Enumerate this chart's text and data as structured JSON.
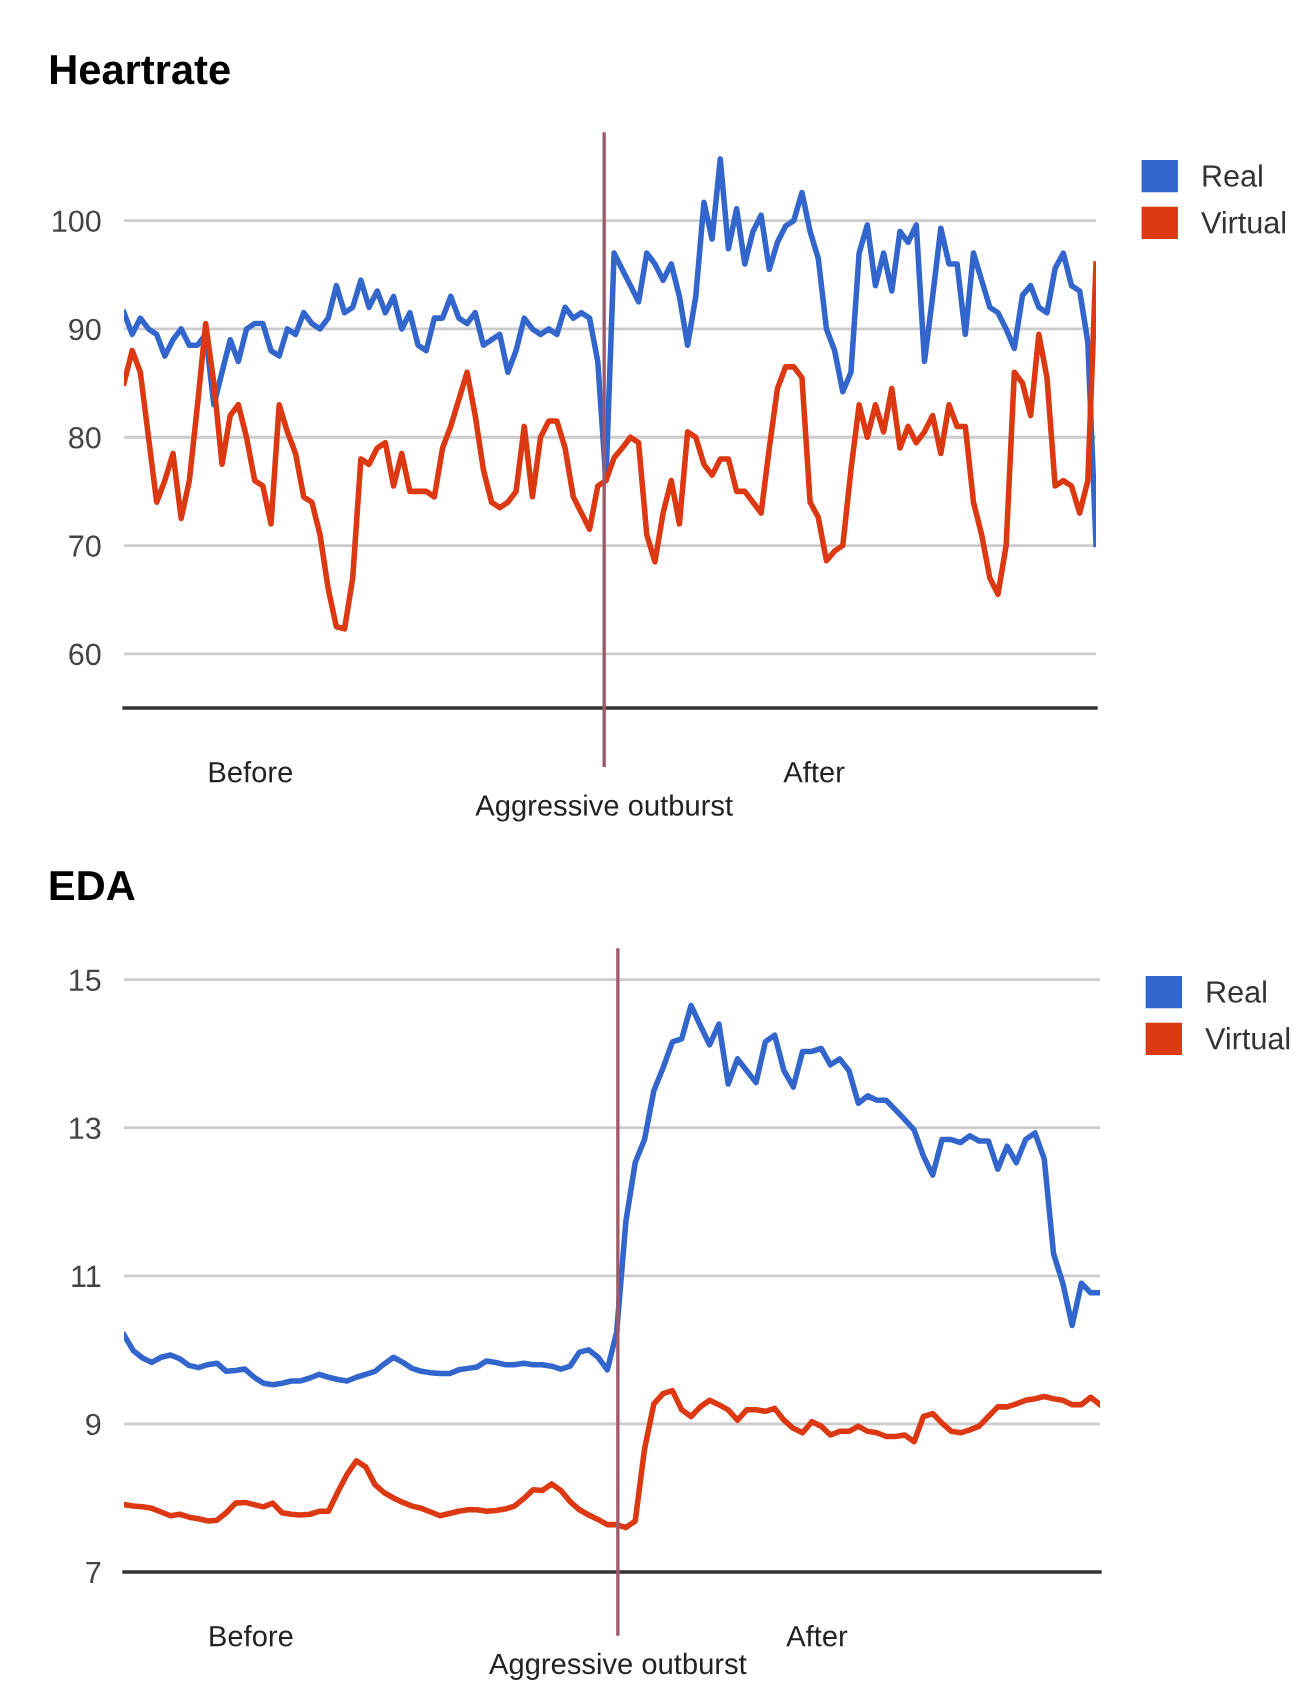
{
  "chart_data": [
    {
      "type": "line",
      "title": "Heartrate",
      "categories": [
        null,
        null,
        null,
        null,
        null,
        null,
        null,
        null,
        null,
        null,
        null,
        null,
        null,
        null,
        null,
        null,
        null,
        null,
        null,
        null,
        null,
        null,
        null,
        null,
        null,
        null,
        null,
        null,
        null,
        null,
        null,
        null,
        null,
        null,
        null,
        null,
        null,
        null,
        null,
        null,
        null,
        null,
        null,
        null,
        null,
        null,
        null,
        null,
        null,
        null,
        null,
        null,
        null,
        null,
        null,
        null,
        null,
        null,
        null,
        null,
        null,
        null,
        null,
        null,
        null,
        null,
        null,
        null,
        null,
        null,
        null,
        null,
        null,
        null,
        null,
        null,
        null,
        null,
        null,
        null,
        null,
        null,
        null,
        null,
        null,
        null,
        null,
        null,
        null,
        null,
        null,
        null,
        null,
        null,
        null,
        null,
        null,
        null,
        null,
        null,
        null,
        null,
        null,
        null,
        null,
        null,
        null,
        null,
        null,
        null,
        null,
        null,
        null,
        null,
        null,
        null,
        null,
        null,
        null,
        null
      ],
      "series": [
        {
          "name": "Real",
          "color": "#3366cc",
          "values": [
            91.5,
            89.5,
            91,
            90,
            89.5,
            87.5,
            89,
            90,
            88.5,
            88.5,
            89.5,
            83,
            86,
            89,
            87,
            90,
            90.5,
            90.5,
            88,
            87.5,
            90,
            89.5,
            91.5,
            90.5,
            90,
            91,
            94,
            91.5,
            92,
            94.5,
            92,
            93.5,
            91.5,
            93,
            90,
            91.5,
            88.5,
            88,
            91,
            91,
            93,
            91,
            90.5,
            91.5,
            88.5,
            89,
            89.5,
            86,
            88,
            91,
            90,
            89.5,
            90,
            89.5,
            92,
            91,
            91.5,
            91,
            87,
            76,
            97,
            95.5,
            94,
            92.5,
            97,
            96,
            94.5,
            96,
            93,
            88.5,
            93,
            101.7,
            98.3,
            105.7,
            97.4,
            101.1,
            96,
            99,
            100.5,
            95.5,
            98,
            99.5,
            100,
            102.6,
            99,
            96.5,
            90,
            88,
            84.2,
            86,
            97,
            99.6,
            94,
            97,
            93.5,
            99,
            98,
            99.6,
            87,
            93,
            99.3,
            96,
            96,
            89.5,
            97,
            94.5,
            92,
            91.5,
            90,
            88.2,
            93.1,
            94,
            92,
            91.5,
            95.6,
            97,
            94,
            93.5,
            88.8,
            70.1
          ]
        },
        {
          "name": "Virtual",
          "color": "#dc3912",
          "values": [
            85,
            88,
            86,
            80,
            74,
            76,
            78.5,
            72.5,
            76,
            83,
            90.5,
            85,
            77.5,
            82,
            83,
            80,
            76,
            75.5,
            72,
            83,
            80.5,
            78.5,
            74.5,
            74,
            71,
            66,
            62.5,
            62.3,
            67,
            78,
            77.5,
            79,
            79.5,
            75.5,
            78.5,
            75,
            75,
            75,
            74.5,
            79,
            81,
            83.5,
            86,
            82,
            77,
            74,
            73.5,
            74,
            75,
            81,
            74.5,
            80,
            81.5,
            81.5,
            79,
            74.5,
            73,
            71.5,
            75.5,
            76,
            78.1,
            79,
            80,
            79.5,
            71,
            68.5,
            73,
            76,
            72,
            80.5,
            80,
            77.5,
            76.5,
            78,
            78,
            75,
            75,
            74,
            73,
            79,
            84.5,
            86.5,
            86.5,
            85.5,
            74,
            72.6,
            68.6,
            69.5,
            70,
            77,
            83,
            80,
            83,
            80.5,
            84.5,
            79,
            81,
            79.5,
            80.5,
            82,
            78.5,
            83,
            81,
            81,
            74,
            71,
            67,
            65.5,
            70,
            86,
            85,
            82,
            89.5,
            85.5,
            75.5,
            76,
            75.5,
            73,
            76,
            96
          ]
        }
      ],
      "ylim": [
        55,
        108
      ],
      "yticks": [
        60,
        70,
        80,
        90,
        100
      ],
      "annotations": [
        "Before",
        "Aggressive outburst",
        "After"
      ],
      "grid": "y",
      "legend": "top right",
      "tick_labels": "y"
    },
    {
      "type": "line",
      "title": "EDA",
      "categories": [
        null,
        null,
        null,
        null,
        null,
        null,
        null,
        null,
        null,
        null,
        null,
        null,
        null,
        null,
        null,
        null,
        null,
        null,
        null,
        null,
        null,
        null,
        null,
        null,
        null,
        null,
        null,
        null,
        null,
        null,
        null,
        null,
        null,
        null,
        null,
        null,
        null,
        null,
        null,
        null,
        null,
        null,
        null,
        null,
        null,
        null,
        null,
        null,
        null,
        null,
        null,
        null,
        null,
        null,
        null,
        null,
        null,
        null,
        null,
        null,
        null,
        null,
        null,
        null,
        null,
        null,
        null,
        null,
        null,
        null,
        null,
        null,
        null,
        null,
        null,
        null,
        null,
        null,
        null,
        null,
        null,
        null,
        null,
        null,
        null,
        null,
        null,
        null,
        null,
        null,
        null,
        null,
        null,
        null,
        null,
        null,
        null,
        null,
        null,
        null,
        null,
        null,
        null,
        null,
        null,
        null
      ],
      "series": [
        {
          "name": "Real",
          "color": "#3366cc",
          "values": [
            10.2,
            9.99,
            9.89,
            9.83,
            9.9,
            9.93,
            9.88,
            9.79,
            9.76,
            9.8,
            9.82,
            9.71,
            9.72,
            9.74,
            9.63,
            9.55,
            9.53,
            9.55,
            9.58,
            9.58,
            9.62,
            9.67,
            9.63,
            9.6,
            9.58,
            9.63,
            9.67,
            9.71,
            9.81,
            9.9,
            9.83,
            9.75,
            9.71,
            9.69,
            9.68,
            9.68,
            9.73,
            9.75,
            9.77,
            9.85,
            9.83,
            9.8,
            9.8,
            9.82,
            9.8,
            9.8,
            9.78,
            9.74,
            9.78,
            9.97,
            10.0,
            9.9,
            9.73,
            10.24,
            11.74,
            12.53,
            12.84,
            13.5,
            13.81,
            14.16,
            14.2,
            14.65,
            14.38,
            14.12,
            14.4,
            13.59,
            13.93,
            13.77,
            13.61,
            14.16,
            14.25,
            13.77,
            13.55,
            14.03,
            14.03,
            14.07,
            13.85,
            13.93,
            13.77,
            13.33,
            13.43,
            13.37,
            13.37,
            13.24,
            13.11,
            12.97,
            12.62,
            12.36,
            12.84,
            12.84,
            12.8,
            12.89,
            12.82,
            12.82,
            12.44,
            12.75,
            12.53,
            12.84,
            12.93,
            12.58,
            11.3,
            10.9,
            10.33,
            10.9,
            10.77,
            10.77
          ]
        },
        {
          "name": "Virtual",
          "color": "#dc3912",
          "values": [
            7.91,
            7.89,
            7.88,
            7.86,
            7.81,
            7.76,
            7.78,
            7.74,
            7.72,
            7.69,
            7.7,
            7.8,
            7.93,
            7.94,
            7.91,
            7.88,
            7.93,
            7.8,
            7.78,
            7.77,
            7.78,
            7.82,
            7.82,
            8.08,
            8.32,
            8.5,
            8.42,
            8.18,
            8.07,
            8.0,
            7.94,
            7.89,
            7.86,
            7.81,
            7.76,
            7.79,
            7.82,
            7.84,
            7.84,
            7.82,
            7.83,
            7.85,
            7.89,
            7.99,
            8.11,
            8.1,
            8.19,
            8.1,
            7.95,
            7.84,
            7.77,
            7.71,
            7.64,
            7.64,
            7.6,
            7.69,
            8.66,
            9.27,
            9.41,
            9.45,
            9.19,
            9.1,
            9.23,
            9.32,
            9.26,
            9.19,
            9.05,
            9.19,
            9.19,
            9.17,
            9.21,
            9.05,
            8.94,
            8.88,
            9.03,
            8.97,
            8.85,
            8.9,
            8.9,
            8.97,
            8.9,
            8.88,
            8.83,
            8.83,
            8.85,
            8.76,
            9.1,
            9.14,
            9.01,
            8.9,
            8.88,
            8.92,
            8.97,
            9.1,
            9.23,
            9.23,
            9.27,
            9.32,
            9.34,
            9.37,
            9.34,
            9.32,
            9.26,
            9.26,
            9.36,
            9.26
          ]
        }
      ],
      "ylim": [
        7,
        15.4
      ],
      "yticks": [
        7,
        9,
        11,
        13,
        15
      ],
      "annotations": [
        "Before",
        "Aggressive outburst",
        "After"
      ],
      "grid": "y",
      "legend": "top right",
      "tick_labels": "y"
    }
  ]
}
